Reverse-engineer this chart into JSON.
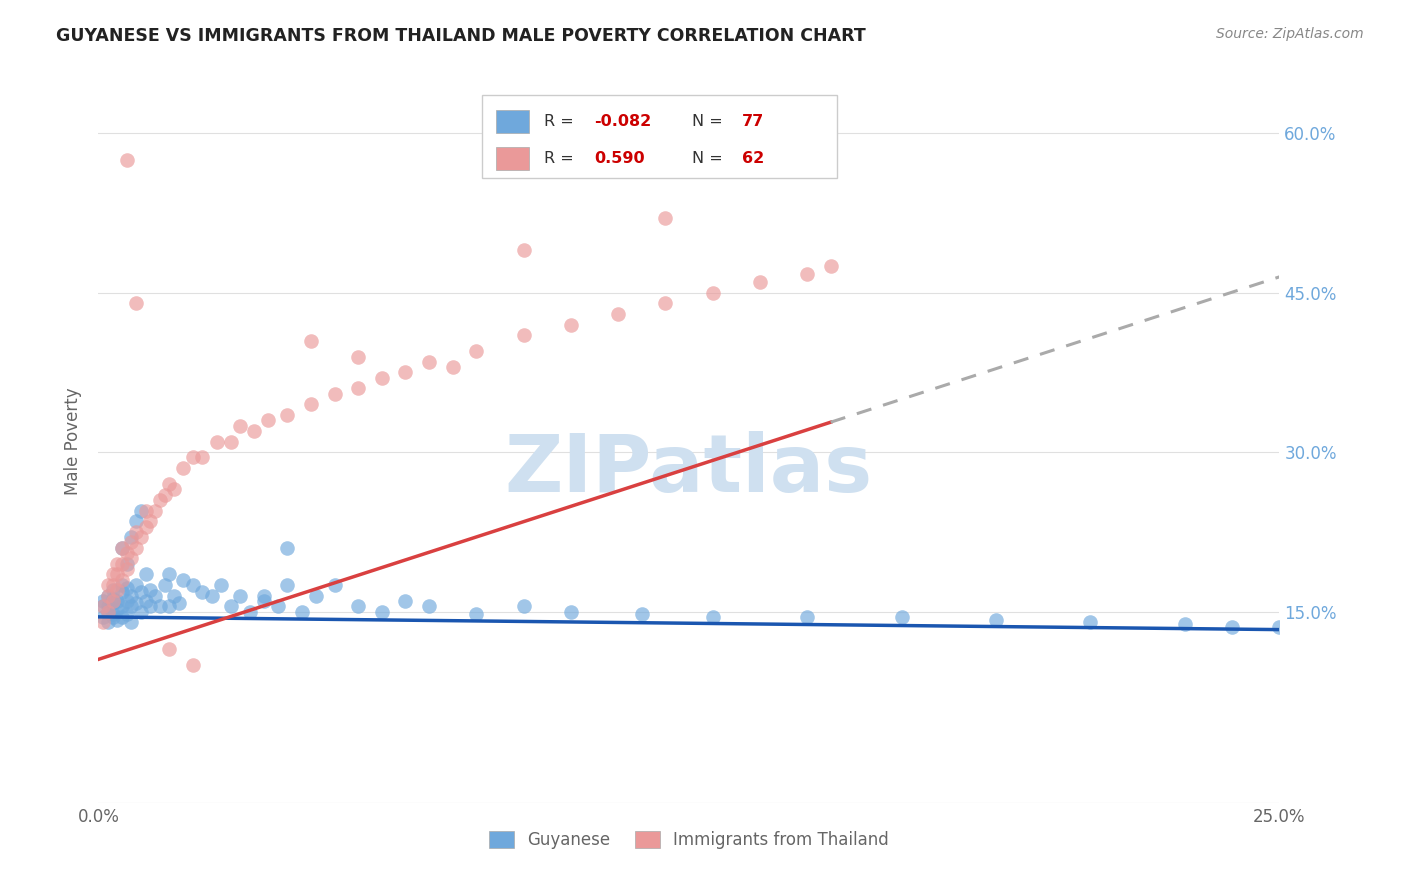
{
  "title": "GUYANESE VS IMMIGRANTS FROM THAILAND MALE POVERTY CORRELATION CHART",
  "source": "Source: ZipAtlas.com",
  "ylabel": "Male Poverty",
  "xlim": [
    0.0,
    0.25
  ],
  "ylim": [
    -0.03,
    0.65
  ],
  "xtick_positions": [
    0.0,
    0.05,
    0.1,
    0.15,
    0.2,
    0.25
  ],
  "xticklabels": [
    "0.0%",
    "",
    "",
    "",
    "",
    "25.0%"
  ],
  "ytick_positions": [
    0.15,
    0.3,
    0.45,
    0.6
  ],
  "yticklabels_right": [
    "15.0%",
    "30.0%",
    "45.0%",
    "60.0%"
  ],
  "series1_label": "Guyanese",
  "series2_label": "Immigrants from Thailand",
  "R1": "-0.082",
  "N1": "77",
  "R2": "0.590",
  "N2": "62",
  "color1": "#6fa8dc",
  "color2": "#ea9999",
  "line1_color": "#1a56b0",
  "line2_color": "#d94040",
  "dash_color": "#aaaaaa",
  "watermark": "ZIPatlas",
  "watermark_color": "#cfe0f0",
  "background_color": "#ffffff",
  "grid_color": "#e0e0e0",
  "title_color": "#222222",
  "source_color": "#888888",
  "ylabel_color": "#666666",
  "tick_color": "#666666",
  "right_tick_color": "#6fa8dc",
  "legend_R_color": "#333333",
  "legend_val_color": "#cc0000",
  "legend_N_color": "#333333",
  "legend_Nval_color": "#cc0000",
  "line1_intercept": 0.145,
  "line1_slope": -0.048,
  "line2_intercept": 0.105,
  "line2_slope": 1.44,
  "line2_dash_start": 0.155,
  "line2_dash_end": 0.25,
  "guyanese_x": [
    0.001,
    0.001,
    0.001,
    0.002,
    0.002,
    0.002,
    0.002,
    0.003,
    0.003,
    0.003,
    0.003,
    0.003,
    0.004,
    0.004,
    0.004,
    0.005,
    0.005,
    0.005,
    0.005,
    0.006,
    0.006,
    0.006,
    0.007,
    0.007,
    0.007,
    0.008,
    0.008,
    0.009,
    0.009,
    0.01,
    0.01,
    0.011,
    0.011,
    0.012,
    0.013,
    0.014,
    0.015,
    0.016,
    0.017,
    0.018,
    0.02,
    0.022,
    0.024,
    0.026,
    0.028,
    0.03,
    0.032,
    0.035,
    0.038,
    0.04,
    0.043,
    0.046,
    0.05,
    0.055,
    0.06,
    0.065,
    0.07,
    0.08,
    0.09,
    0.1,
    0.115,
    0.13,
    0.15,
    0.17,
    0.19,
    0.21,
    0.23,
    0.24,
    0.25,
    0.005,
    0.006,
    0.007,
    0.008,
    0.009,
    0.04,
    0.035,
    0.015
  ],
  "guyanese_y": [
    0.155,
    0.145,
    0.16,
    0.15,
    0.14,
    0.165,
    0.155,
    0.148,
    0.158,
    0.162,
    0.145,
    0.17,
    0.152,
    0.16,
    0.142,
    0.155,
    0.168,
    0.145,
    0.175,
    0.16,
    0.148,
    0.172,
    0.155,
    0.165,
    0.14,
    0.158,
    0.175,
    0.15,
    0.168,
    0.16,
    0.185,
    0.155,
    0.17,
    0.165,
    0.155,
    0.175,
    0.185,
    0.165,
    0.158,
    0.18,
    0.175,
    0.168,
    0.165,
    0.175,
    0.155,
    0.165,
    0.15,
    0.16,
    0.155,
    0.175,
    0.15,
    0.165,
    0.175,
    0.155,
    0.15,
    0.16,
    0.155,
    0.148,
    0.155,
    0.15,
    0.148,
    0.145,
    0.145,
    0.145,
    0.142,
    0.14,
    0.138,
    0.135,
    0.135,
    0.21,
    0.195,
    0.22,
    0.235,
    0.245,
    0.21,
    0.165,
    0.155
  ],
  "thailand_x": [
    0.001,
    0.001,
    0.002,
    0.002,
    0.002,
    0.003,
    0.003,
    0.003,
    0.004,
    0.004,
    0.004,
    0.005,
    0.005,
    0.005,
    0.006,
    0.006,
    0.007,
    0.007,
    0.008,
    0.008,
    0.009,
    0.01,
    0.01,
    0.011,
    0.012,
    0.013,
    0.014,
    0.015,
    0.016,
    0.018,
    0.02,
    0.022,
    0.025,
    0.028,
    0.03,
    0.033,
    0.036,
    0.04,
    0.045,
    0.05,
    0.055,
    0.06,
    0.065,
    0.07,
    0.075,
    0.08,
    0.09,
    0.1,
    0.11,
    0.12,
    0.13,
    0.14,
    0.15,
    0.155,
    0.006,
    0.008,
    0.09,
    0.12,
    0.045,
    0.055,
    0.02,
    0.015
  ],
  "thailand_y": [
    0.14,
    0.155,
    0.15,
    0.165,
    0.175,
    0.16,
    0.175,
    0.185,
    0.17,
    0.185,
    0.195,
    0.18,
    0.195,
    0.21,
    0.19,
    0.205,
    0.2,
    0.215,
    0.21,
    0.225,
    0.22,
    0.23,
    0.245,
    0.235,
    0.245,
    0.255,
    0.26,
    0.27,
    0.265,
    0.285,
    0.295,
    0.295,
    0.31,
    0.31,
    0.325,
    0.32,
    0.33,
    0.335,
    0.345,
    0.355,
    0.36,
    0.37,
    0.375,
    0.385,
    0.38,
    0.395,
    0.41,
    0.42,
    0.43,
    0.44,
    0.45,
    0.46,
    0.468,
    0.475,
    0.575,
    0.44,
    0.49,
    0.52,
    0.405,
    0.39,
    0.1,
    0.115
  ]
}
